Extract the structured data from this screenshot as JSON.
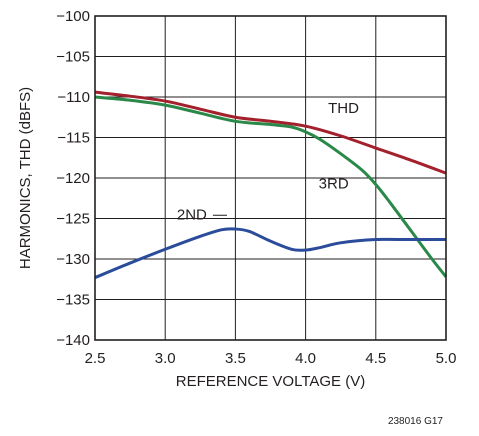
{
  "chart_data": {
    "type": "line",
    "xlabel": "REFERENCE VOLTAGE (V)",
    "ylabel": "HARMONICS, THD (dBFS)",
    "xlim": [
      2.5,
      5.0
    ],
    "ylim": [
      -140,
      -100
    ],
    "xticks": [
      2.5,
      3.0,
      3.5,
      4.0,
      4.5,
      5.0
    ],
    "xtick_labels": [
      "2.5",
      "3.0",
      "3.5",
      "4.0",
      "4.5",
      "5.0"
    ],
    "yticks": [
      -100,
      -105,
      -110,
      -115,
      -120,
      -125,
      -130,
      -135,
      -140
    ],
    "ytick_labels": [
      "−100",
      "−105",
      "−110",
      "−115",
      "−120",
      "−125",
      "−130",
      "−135",
      "−140"
    ],
    "grid": true,
    "figure_code": "238016 G17",
    "series": [
      {
        "name": "THD",
        "color": "#a3212c",
        "x": [
          2.5,
          2.75,
          3.0,
          3.25,
          3.5,
          3.75,
          4.0,
          4.25,
          4.5,
          4.75,
          5.0
        ],
        "y": [
          -109.4,
          -109.9,
          -110.5,
          -111.5,
          -112.5,
          -113.0,
          -113.6,
          -114.8,
          -116.3,
          -117.8,
          -119.4
        ]
      },
      {
        "name": "3RD",
        "color": "#2a8848",
        "x": [
          2.5,
          2.75,
          3.0,
          3.25,
          3.5,
          3.75,
          3.9,
          4.0,
          4.1,
          4.25,
          4.4,
          4.5,
          4.6,
          4.75,
          4.9,
          5.0
        ],
        "y": [
          -110.0,
          -110.4,
          -111.0,
          -112.0,
          -113.0,
          -113.4,
          -113.7,
          -114.3,
          -115.2,
          -117.0,
          -119.0,
          -120.8,
          -123.0,
          -126.5,
          -130.0,
          -132.2
        ]
      },
      {
        "name": "2ND",
        "color": "#2b4c9a",
        "x": [
          2.5,
          2.75,
          3.0,
          3.25,
          3.4,
          3.5,
          3.6,
          3.75,
          3.9,
          4.0,
          4.1,
          4.25,
          4.5,
          4.75,
          5.0
        ],
        "y": [
          -132.3,
          -130.5,
          -128.8,
          -127.2,
          -126.4,
          -126.3,
          -126.6,
          -127.8,
          -128.8,
          -128.9,
          -128.6,
          -128.0,
          -127.6,
          -127.6,
          -127.6
        ]
      }
    ]
  }
}
